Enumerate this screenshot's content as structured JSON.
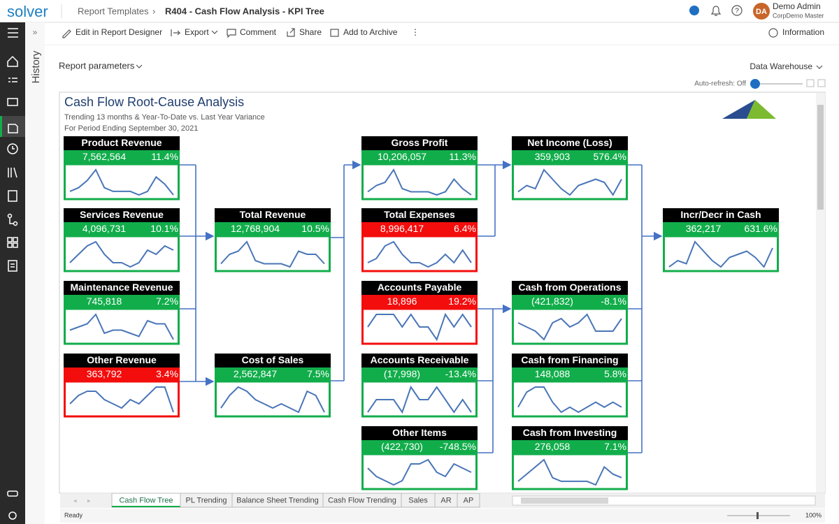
{
  "topbar": {
    "logo": "solver",
    "breadcrumb": [
      "Report Templates",
      "R404 - Cash Flow Analysis - KPI Tree"
    ],
    "user": {
      "initials": "DA",
      "name": "Demo Admin",
      "company": "CorpDemo Master"
    }
  },
  "sidebar": {
    "expand": "»",
    "history": "History"
  },
  "toolbar": {
    "actions": [
      "Edit in Report Designer",
      "Export",
      "Comment",
      "Share",
      "Add to Archive"
    ],
    "info": "Information"
  },
  "params": {
    "label": "Report parameters",
    "source": "Data Warehouse",
    "autorefresh": "Auto-refresh: Off"
  },
  "report": {
    "title": "Cash Flow Root-Cause Analysis",
    "subtitle": [
      "Trending 13 months &  Year-To-Date vs. Last Year Variance",
      "For Period Ending September 30, 2021"
    ],
    "nodes": [
      {
        "title": "Product Revenue",
        "value": "7,562,564",
        "pct": "11.4%",
        "color": "#12ad4b",
        "trend": [
          3,
          4,
          6,
          9,
          4,
          3,
          3,
          3,
          2,
          3,
          7,
          5,
          2
        ]
      },
      {
        "title": "Services Revenue",
        "value": "4,096,731",
        "pct": "10.1%",
        "color": "#12ad4b",
        "trend": [
          3,
          5,
          7,
          8,
          5,
          3,
          3,
          2,
          3,
          6,
          5,
          7,
          6
        ]
      },
      {
        "title": "Maintenance Revenue",
        "value": "745,818",
        "pct": "7.2%",
        "color": "#12ad4b",
        "trend": [
          4,
          5,
          6,
          9,
          3,
          4,
          4,
          3,
          2,
          7,
          6,
          6,
          1
        ]
      },
      {
        "title": "Other Revenue",
        "value": "363,792",
        "pct": "3.4%",
        "color": "#f30d0d",
        "trend": [
          3,
          5,
          6,
          6,
          4,
          3,
          2,
          4,
          3,
          5,
          7,
          7,
          1
        ]
      },
      {
        "title": "Total Revenue",
        "value": "12,768,904",
        "pct": "10.5%",
        "color": "#12ad4b",
        "trend": [
          2,
          5,
          6,
          9,
          3,
          2,
          2,
          2,
          1,
          6,
          5,
          5,
          2
        ]
      },
      {
        "title": "Cost of Sales",
        "value": "2,562,847",
        "pct": "7.5%",
        "color": "#12ad4b",
        "trend": [
          3,
          6,
          8,
          7,
          5,
          4,
          3,
          4,
          3,
          2,
          7,
          6,
          2
        ]
      },
      {
        "title": "Gross Profit",
        "value": "10,206,057",
        "pct": "11.3%",
        "color": "#12ad4b",
        "trend": [
          2,
          4,
          5,
          9,
          3,
          2,
          2,
          2,
          1,
          2,
          6,
          3,
          1
        ]
      },
      {
        "title": "Total Expenses",
        "value": "8,996,417",
        "pct": "6.4%",
        "color": "#f30d0d",
        "trend": [
          3,
          4,
          7,
          8,
          5,
          3,
          3,
          2,
          3,
          5,
          3,
          6,
          3
        ]
      },
      {
        "title": "Accounts Payable",
        "value": "18,896",
        "pct": "19.2%",
        "color": "#f30d0d",
        "trend": [
          4,
          5,
          5,
          5,
          4,
          5,
          4,
          4,
          3,
          5,
          4,
          5,
          4
        ]
      },
      {
        "title": "Accounts Receivable",
        "value": "(17,998)",
        "pct": "-13.4%",
        "color": "#12ad4b",
        "trend": [
          2,
          3,
          3,
          3,
          2,
          4,
          3,
          3,
          4,
          3,
          2,
          3,
          2
        ]
      },
      {
        "title": "Other Items",
        "value": "(422,730)",
        "pct": "-748.5%",
        "color": "#12ad4b",
        "trend": [
          5,
          3,
          2,
          1,
          2,
          6,
          6,
          7,
          4,
          3,
          6,
          5,
          4
        ]
      },
      {
        "title": "Net Income (Loss)",
        "value": "359,903",
        "pct": "576.4%",
        "color": "#12ad4b",
        "trend": [
          2,
          4,
          3,
          9,
          6,
          3,
          1,
          4,
          5,
          6,
          5,
          1,
          6
        ]
      },
      {
        "title": "Cash from Operations",
        "value": "(421,832)",
        "pct": "-8.1%",
        "color": "#12ad4b",
        "trend": [
          5,
          4,
          3,
          1,
          5,
          6,
          4,
          5,
          7,
          3,
          3,
          3,
          6
        ]
      },
      {
        "title": "Cash from Financing",
        "value": "148,088",
        "pct": "5.8%",
        "color": "#12ad4b",
        "trend": [
          3,
          6,
          7,
          7,
          4,
          2,
          3,
          2,
          3,
          4,
          3,
          4,
          3
        ]
      },
      {
        "title": "Cash from Investing",
        "value": "276,058",
        "pct": "7.1%",
        "color": "#12ad4b",
        "trend": [
          3,
          5,
          7,
          9,
          4,
          3,
          3,
          3,
          3,
          2,
          7,
          5,
          4
        ]
      },
      {
        "title": "Incr/Decr in Cash",
        "value": "362,217",
        "pct": "631.6%",
        "color": "#12ad4b",
        "trend": [
          1,
          3,
          2,
          9,
          6,
          3,
          1,
          4,
          5,
          6,
          4,
          1,
          7
        ]
      }
    ]
  },
  "tabs": [
    "Cash Flow Tree",
    "PL Trending",
    "Balance Sheet Trending",
    "Cash Flow Trending",
    "Sales",
    "AR",
    "AP"
  ],
  "status": {
    "text": "Ready",
    "zoom": "100%"
  }
}
